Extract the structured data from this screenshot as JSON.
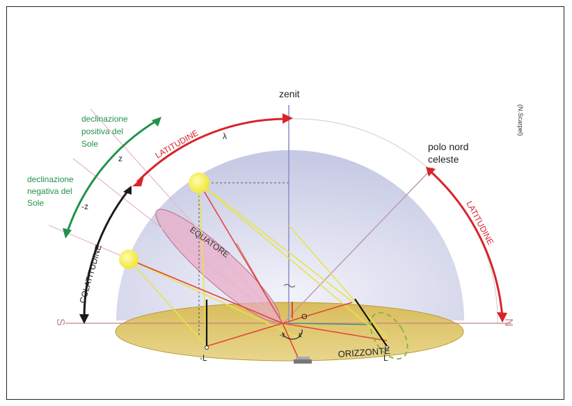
{
  "labels": {
    "zenit": "zenit",
    "polo_nord": "polo nord",
    "celeste": "celeste",
    "credit": "(N.Scarpel)",
    "lambda": "λ",
    "latitudine_left": "LATITUDINE",
    "latitudine_right": "LATITUDINE",
    "colatitudine": "COLATITUDINE",
    "equatore": "EQUATORE",
    "orizzonte": "ORIZZONTE",
    "decl_pos_1": "declinazione",
    "decl_pos_2": "positiva del",
    "decl_pos_3": "Sole",
    "decl_neg_1": "declinazione",
    "decl_neg_2": "negativa del",
    "decl_neg_3": "Sole",
    "z": "z",
    "minus_z": "-z",
    "s": "S",
    "n": "N",
    "o": "O",
    "minus_l": "-L",
    "l": "L",
    "eps": "ε",
    "minus_eps": "-ε"
  },
  "colors": {
    "dome": "#d6d8ee",
    "horizon_plane": "#dcc46a",
    "red_arc": "#d8242a",
    "green_arc": "#22924a",
    "black_arc": "#1a1a1a",
    "sun": "#f6f04a",
    "equator_plane": "#e6a9c2",
    "ray": "#e4e64a"
  }
}
